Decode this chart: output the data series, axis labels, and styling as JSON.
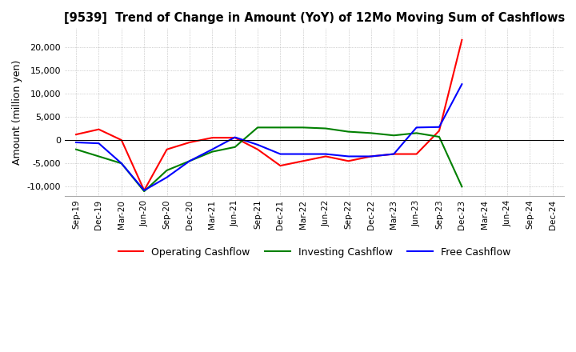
{
  "title": "[9539]  Trend of Change in Amount (YoY) of 12Mo Moving Sum of Cashflows",
  "ylabel": "Amount (million yen)",
  "ylim": [
    -12000,
    24000
  ],
  "yticks": [
    -10000,
    -5000,
    0,
    5000,
    10000,
    15000,
    20000
  ],
  "x_labels": [
    "Sep-19",
    "Dec-19",
    "Mar-20",
    "Jun-20",
    "Sep-20",
    "Dec-20",
    "Mar-21",
    "Jun-21",
    "Sep-21",
    "Dec-21",
    "Mar-22",
    "Jun-22",
    "Sep-22",
    "Dec-22",
    "Mar-23",
    "Jun-23",
    "Sep-23",
    "Dec-23",
    "Mar-24",
    "Jun-24",
    "Sep-24",
    "Dec-24"
  ],
  "operating": [
    1200,
    2300,
    0,
    -10800,
    -2000,
    -500,
    500,
    500,
    -2000,
    -5500,
    -4500,
    -3500,
    -4500,
    -3500,
    -3000,
    -3000,
    2000,
    21500,
    null,
    null,
    null,
    null
  ],
  "investing": [
    -2000,
    -3500,
    -5000,
    -11000,
    -6500,
    -4500,
    -2500,
    -1500,
    2700,
    2700,
    2700,
    2500,
    1800,
    1500,
    1000,
    1500,
    700,
    -10000,
    null,
    null,
    null,
    null
  ],
  "free": [
    -500,
    -700,
    -5000,
    -10800,
    -8000,
    -4500,
    -2000,
    600,
    -1000,
    -3000,
    -3000,
    -3000,
    -3500,
    -3500,
    -3000,
    2700,
    2800,
    12000,
    null,
    null,
    null,
    null
  ],
  "colors": {
    "operating": "#FF0000",
    "investing": "#008000",
    "free": "#0000FF"
  },
  "legend_labels": [
    "Operating Cashflow",
    "Investing Cashflow",
    "Free Cashflow"
  ],
  "background_color": "#FFFFFF",
  "grid_color": "#AAAAAA"
}
